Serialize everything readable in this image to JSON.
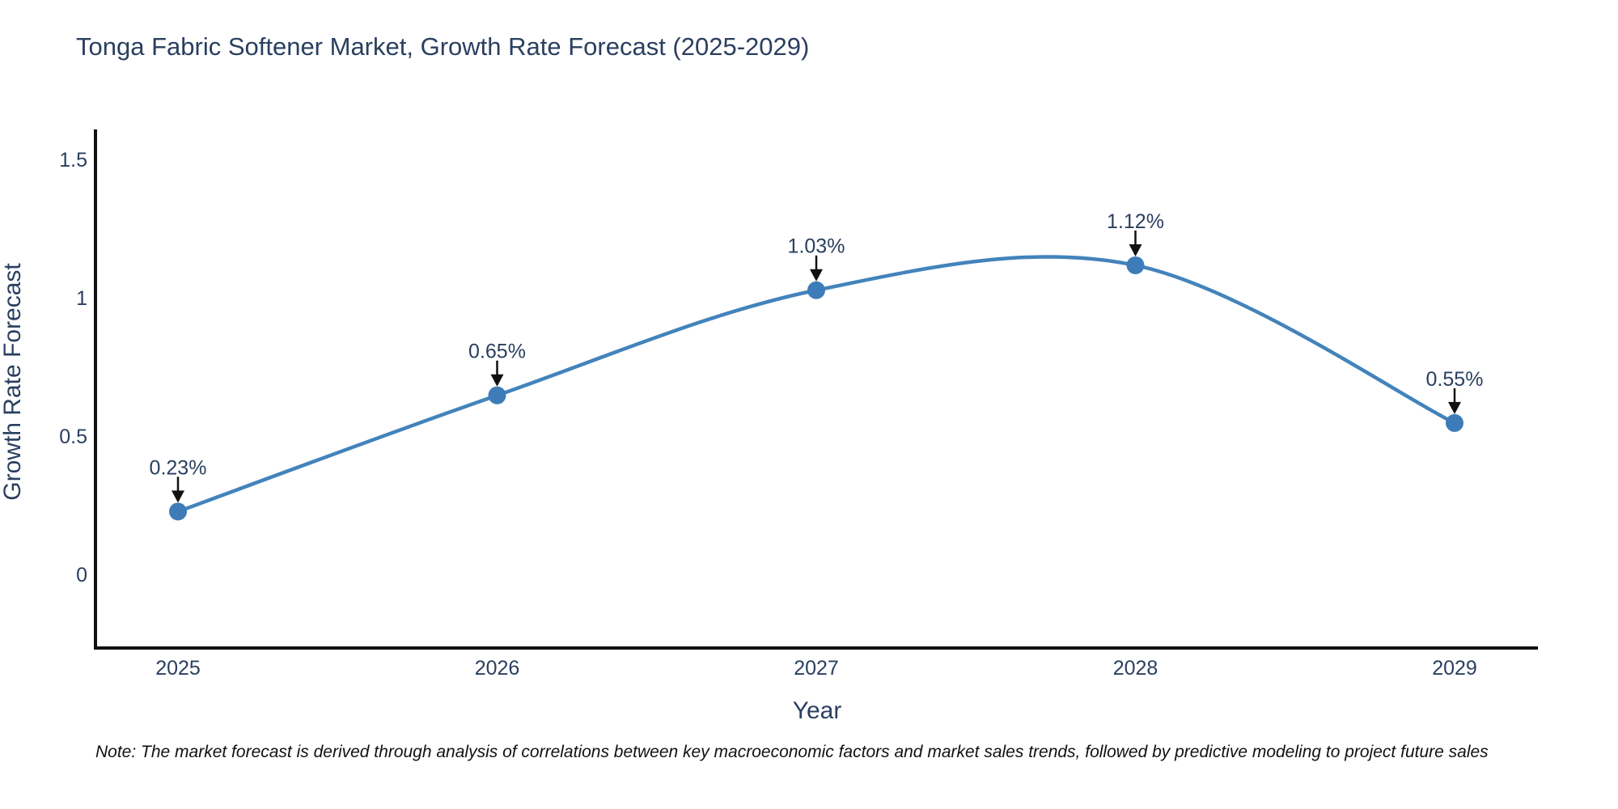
{
  "chart_data": {
    "type": "line",
    "title": "Tonga Fabric Softener Market, Growth Rate Forecast (2025-2029)",
    "categories": [
      "2025",
      "2026",
      "2027",
      "2028",
      "2029"
    ],
    "values": [
      0.23,
      0.65,
      1.03,
      1.12,
      0.55
    ],
    "point_labels": [
      "0.23%",
      "0.65%",
      "1.03%",
      "1.12%",
      "0.55%"
    ],
    "series_name": "Growth Rate Forecast",
    "xlabel": "Year",
    "ylabel": "Growth Rate Forecast",
    "ytick_labels": [
      "1.5",
      "1",
      "0.5",
      "0"
    ],
    "ytick_values": [
      1.5,
      1.0,
      0.5,
      0
    ],
    "ylim": [
      -0.27,
      1.61
    ],
    "line_shape": "spline",
    "grid": false,
    "legend": "none",
    "colors": {
      "line": "#4383bc",
      "marker": "#3d7cb8",
      "axis": "#111111",
      "text": "#2a3f5f",
      "arrow": "#111111",
      "note": "#111111",
      "background": "#ffffff"
    }
  },
  "note": {
    "text": "Note: The market forecast is derived through analysis of correlations between key macroeconomic factors and market sales trends, followed by predictive modeling to project future sales"
  }
}
